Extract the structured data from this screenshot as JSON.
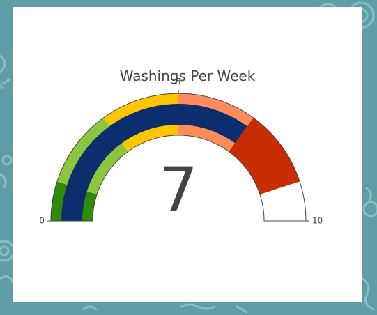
{
  "chart_data": {
    "type": "gauge",
    "title": "Washings Per Week",
    "value": 7,
    "range": [
      0,
      10
    ],
    "tick_values": [
      0,
      5,
      10
    ],
    "tick_labels": [
      "0",
      "5",
      "10"
    ],
    "steps": [
      {
        "range": [
          0,
          1
        ],
        "color": "#2f8a0a"
      },
      {
        "range": [
          1,
          3
        ],
        "color": "#8cc63f"
      },
      {
        "range": [
          3,
          5
        ],
        "color": "#ffc600"
      },
      {
        "range": [
          5,
          7
        ],
        "color": "#ff8c5a"
      },
      {
        "range": [
          7,
          9
        ],
        "color": "#c62d00"
      },
      {
        "range": [
          9,
          10
        ],
        "color": "#ffffff"
      }
    ],
    "bar_color": "#0c2d6e"
  },
  "colors": {
    "background": "#5f9ea6",
    "pattern": "#8cc4cb",
    "card": "#ffffff",
    "text": "#444444",
    "outline": "#444444"
  }
}
